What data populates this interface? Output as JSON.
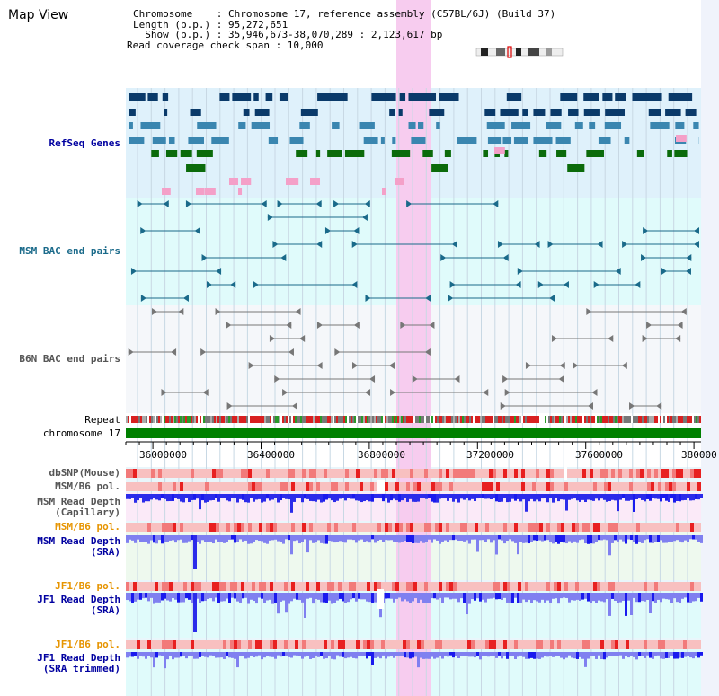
{
  "title": "Map View",
  "info": {
    "line1": "Chromosome    : Chromosome 17, reference assembly (C57BL/6J) (Build 37)",
    "line2": "Length (b.p.) : 95,272,651",
    "line3": "  Show (b.p.) : 35,946,673-38,070,289 : 2,123,617 bp",
    "line4": "Read coverage check span : 10,000"
  },
  "tracks": {
    "refseq": "RefSeq Genes",
    "msm_bac": "MSM BAC end pairs",
    "b6n_bac": "B6N BAC end pairs",
    "repeat": "Repeat",
    "chromosome": "chromosome 17",
    "dbsnp": "dbSNP(Mouse)",
    "msm_b6_pol_1": "MSM/B6 pol.",
    "msm_depth_cap_1": "MSM Read Depth",
    "msm_depth_cap_2": "(Capillary)",
    "msm_b6_pol_2": "MSM/B6 pol.",
    "msm_depth_sra_1": "MSM Read Depth",
    "msm_depth_sra_2": "(SRA)",
    "jf1_b6_pol_1": "JF1/B6 pol.",
    "jf1_depth_sra_1": "JF1 Read Depth",
    "jf1_depth_sra_2": "(SRA)",
    "jf1_b6_pol_2": "JF1/B6 pol.",
    "jf1_depth_trim_1": "JF1 Read Depth",
    "jf1_depth_trim_2": "(SRA trimmed)"
  },
  "axis": {
    "ticks": [
      "36000000",
      "36400000",
      "36800000",
      "37200000",
      "37600000",
      "380000"
    ]
  },
  "colors": {
    "refseq_bg": "#dff1fb",
    "bac_bg": "#e0fbfb",
    "highlight": "#f7ccef",
    "chromosome_bar": "#008000",
    "depth_blue": "#2b2bea",
    "depth_light": "#8080f0"
  }
}
